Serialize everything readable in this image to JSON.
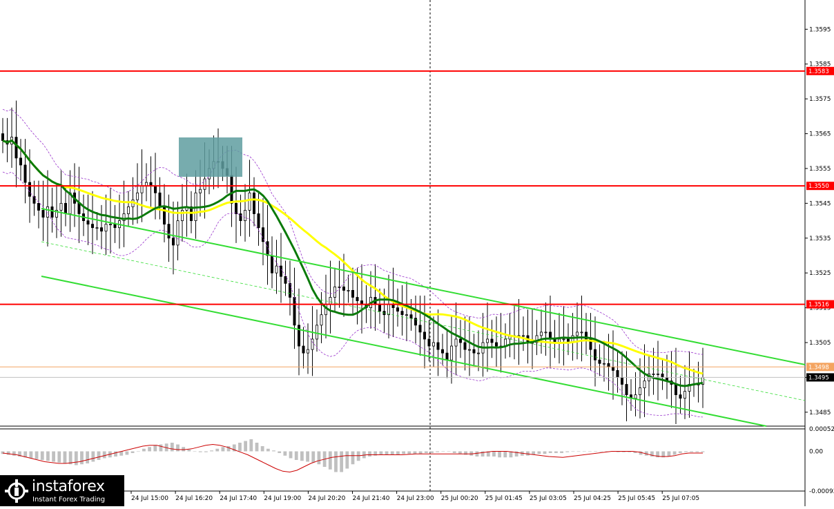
{
  "chart_data": [
    {
      "type": "candlestick",
      "title": "",
      "ylim": [
        1.3481,
        1.3603
      ],
      "y_ticks": [
        "1.3595",
        "1.3585",
        "1.3575",
        "1.3565",
        "1.3555",
        "1.3545",
        "1.3535",
        "1.3525",
        "1.3515",
        "1.3505",
        "1.3495",
        "1.3485"
      ],
      "x_ticks": [
        "24 Jul 15:00",
        "24 Jul 16:20",
        "24 Jul 17:40",
        "24 Jul 19:00",
        "24 Jul 20:20",
        "24 Jul 21:40",
        "24 Jul 23:00",
        "25 Jul 00:20",
        "25 Jul 01:45",
        "25 Jul 03:05",
        "25 Jul 04:25",
        "25 Jul 05:45",
        "25 Jul 07:05"
      ],
      "closes": [
        1.3563,
        1.3562,
        1.3564,
        1.3558,
        1.3556,
        1.3551,
        1.3547,
        1.3545,
        1.3543,
        1.3541,
        1.3544,
        1.3541,
        1.3543,
        1.3545,
        1.3542,
        1.3548,
        1.3545,
        1.3542,
        1.354,
        1.3539,
        1.3538,
        1.3538,
        1.3537,
        1.3539,
        1.3539,
        1.3538,
        1.354,
        1.3542,
        1.3544,
        1.3546,
        1.3548,
        1.355,
        1.3551,
        1.355,
        1.3548,
        1.3544,
        1.3539,
        1.3535,
        1.3533,
        1.354,
        1.3543,
        1.3544,
        1.354,
        1.3548,
        1.3549,
        1.3552,
        1.3555,
        1.3557,
        1.3557,
        1.3555,
        1.3553,
        1.3545,
        1.3542,
        1.354,
        1.3543,
        1.3548,
        1.3542,
        1.3538,
        1.3534,
        1.353,
        1.3525,
        1.3527,
        1.3524,
        1.3522,
        1.3518,
        1.351,
        1.3504,
        1.3502,
        1.3503,
        1.3506,
        1.351,
        1.3513,
        1.3516,
        1.3518,
        1.3521,
        1.3521,
        1.352,
        1.352,
        1.3518,
        1.3517,
        1.3516,
        1.3515,
        1.3518,
        1.3516,
        1.3514,
        1.3513,
        1.3516,
        1.3515,
        1.3514,
        1.3513,
        1.3513,
        1.3512,
        1.351,
        1.3508,
        1.3506,
        1.3504,
        1.3505,
        1.3503,
        1.3502,
        1.35,
        1.3504,
        1.3506,
        1.3505,
        1.3503,
        1.3503,
        1.3502,
        1.3502,
        1.3505,
        1.3506,
        1.3505,
        1.3504,
        1.3504,
        1.3506,
        1.3507,
        1.3507,
        1.3507,
        1.3507,
        1.3505,
        1.3505,
        1.3507,
        1.3508,
        1.3508,
        1.3506,
        1.3505,
        1.3506,
        1.3506,
        1.3505,
        1.3507,
        1.3508,
        1.3508,
        1.3506,
        1.3503,
        1.35,
        1.3499,
        1.3499,
        1.3498,
        1.3497,
        1.3495,
        1.3493,
        1.349,
        1.3489,
        1.349,
        1.3492,
        1.3494,
        1.3496,
        1.3496,
        1.3496,
        1.3495,
        1.3494,
        1.3493,
        1.349,
        1.3489,
        1.3491,
        1.3493,
        1.3493,
        1.3493,
        1.3495
      ],
      "horizontal_levels": [
        {
          "value": 1.3583,
          "label": "1.3583",
          "color": "#ff0000"
        },
        {
          "value": 1.355,
          "label": "1.3550",
          "color": "#ff0000"
        },
        {
          "value": 1.3516,
          "label": "1.3516",
          "color": "#ff0000"
        },
        {
          "value": 1.3498,
          "label": "1.3498",
          "color": "#f4a460"
        },
        {
          "value": 1.3495,
          "label": "1.3495",
          "color": "#000000"
        }
      ],
      "moving_averages": [
        {
          "color": "#ffff00",
          "period": 30
        },
        {
          "color": "#0a7a0a",
          "period": 14
        }
      ],
      "channel_color": "#33dd33",
      "entry_zone_color": "#5f9ea0",
      "bollinger_color": "#9933cc"
    },
    {
      "type": "histogram",
      "title": "",
      "ylim": [
        -0.00092,
        0.00052
      ],
      "y_ticks": [
        "0.00052",
        "0.00",
        "-0.00092"
      ],
      "histogram": [
        -6e-05,
        -8e-05,
        -0.0001,
        -0.00012,
        -0.00014,
        -0.00016,
        -0.00018,
        -0.0002,
        -0.00022,
        -0.00024,
        -0.00026,
        -0.00028,
        -0.0003,
        -0.00032,
        -0.0003,
        -0.00028,
        -0.00024,
        -0.0002,
        -0.00016,
        -0.00014,
        -0.00012,
        -0.0001,
        -8e-05,
        -4e-05,
        0.0,
        6e-05,
        0.0001,
        0.00014,
        0.00016,
        0.00018,
        0.0002,
        0.00016,
        0.0001,
        4e-05,
        0.0,
        -2e-05,
        -2e-05,
        2e-05,
        6e-05,
        0.0001,
        0.00012,
        0.00016,
        0.0002,
        0.00024,
        0.00028,
        0.0002,
        0.00012,
        6e-05,
        2e-05,
        -4e-05,
        -0.0001,
        -0.00016,
        -0.0002,
        -0.00022,
        -0.00024,
        -0.00026,
        -0.0003,
        -0.00036,
        -0.00042,
        -0.00048,
        -0.00048,
        -0.0004,
        -0.0003,
        -0.00022,
        -0.00016,
        -0.00012,
        -0.0001,
        -8e-05,
        -8e-05,
        -8e-05,
        -8e-05,
        -6e-05,
        -6e-05,
        -6e-05,
        -6e-05,
        -4e-05,
        -4e-05,
        -2e-05,
        0.0,
        0.0,
        -4e-05,
        -6e-05,
        -8e-05,
        -0.0001,
        -0.00012,
        -0.00012,
        -0.00012,
        -0.00012,
        -0.00014,
        -0.00014,
        -0.00014,
        -0.00012,
        -0.0001,
        -0.0001,
        -8e-05,
        -6e-05,
        -6e-05,
        -4e-05,
        -4e-05,
        -4e-05,
        -2e-05,
        0.0,
        0.0,
        0.0,
        0.0,
        0.0,
        0.0,
        0.0,
        0.0,
        -2e-05,
        -2e-05,
        -2e-05,
        -4e-05,
        -8e-05,
        -0.0001,
        -0.00012,
        -0.00014,
        -0.00014,
        -0.00012,
        -8e-05,
        -4e-05,
        -2e-05,
        -2e-05,
        -2e-05,
        -2e-05
      ],
      "signal": [
        -4e-05,
        -6e-05,
        -8e-05,
        -0.00012,
        -0.00016,
        -0.0002,
        -0.00024,
        -0.00026,
        -0.00028,
        -0.00028,
        -0.00026,
        -0.00024,
        -0.0002,
        -0.00016,
        -0.00012,
        -8e-05,
        -4e-05,
        0.0,
        4e-05,
        8e-05,
        0.00012,
        0.00014,
        0.00014,
        0.0001,
        6e-05,
        4e-05,
        4e-05,
        6e-05,
        0.0001,
        0.00014,
        0.00016,
        0.00014,
        0.0001,
        4e-05,
        -2e-05,
        -8e-05,
        -0.00016,
        -0.00024,
        -0.00032,
        -0.0004,
        -0.00046,
        -0.00048,
        -0.00044,
        -0.00036,
        -0.00028,
        -0.00022,
        -0.00018,
        -0.00014,
        -0.00012,
        -0.0001,
        -0.0001,
        -0.0001,
        -8e-05,
        -8e-05,
        -8e-05,
        -8e-05,
        -8e-05,
        -8e-05,
        -7e-05,
        -6e-05,
        -6e-05,
        -6e-05,
        -6e-05,
        -6e-05,
        -6e-05,
        -6e-05,
        -6e-05,
        -6e-05,
        -4e-05,
        -2e-05,
        0.0,
        0.0,
        0.0,
        -2e-05,
        -4e-05,
        -6e-05,
        -8e-05,
        -0.0001,
        -0.00012,
        -0.00013,
        -0.00014,
        -0.00012,
        -0.0001,
        -8e-05,
        -6e-05,
        -4e-05,
        -2e-05,
        0.0,
        0.0,
        0.0,
        0.0,
        -2e-05,
        -6e-05,
        -0.0001,
        -0.00012,
        -0.00012,
        -0.0001,
        -6e-05,
        -4e-05,
        -4e-05,
        -4e-05
      ],
      "colors": {
        "histogram": "#c0c0c0",
        "signal": "#cc0000"
      }
    }
  ],
  "brand": {
    "name": "instaforex",
    "tagline": "Instant Forex Trading"
  }
}
